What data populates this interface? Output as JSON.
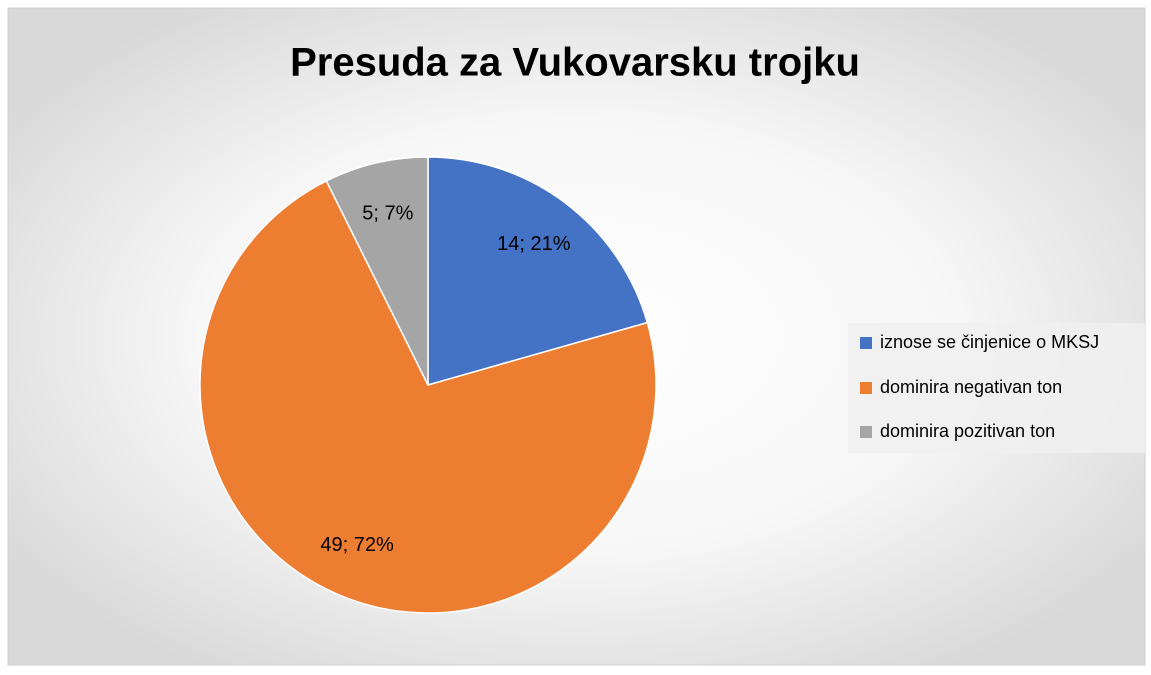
{
  "chart_data": {
    "type": "pie",
    "title": "Presuda za Vukovarsku trojku",
    "categories": [
      "iznose se činjenice o MKSJ",
      "dominira negativan ton",
      "dominira pozitivan ton"
    ],
    "values": [
      14,
      49,
      5
    ],
    "value_labels": [
      "14; 21%",
      "49; 72%",
      "5; 7%"
    ],
    "colors": [
      "#4472c4",
      "#ed7d31",
      "#a5a5a5"
    ],
    "legend": "right"
  }
}
